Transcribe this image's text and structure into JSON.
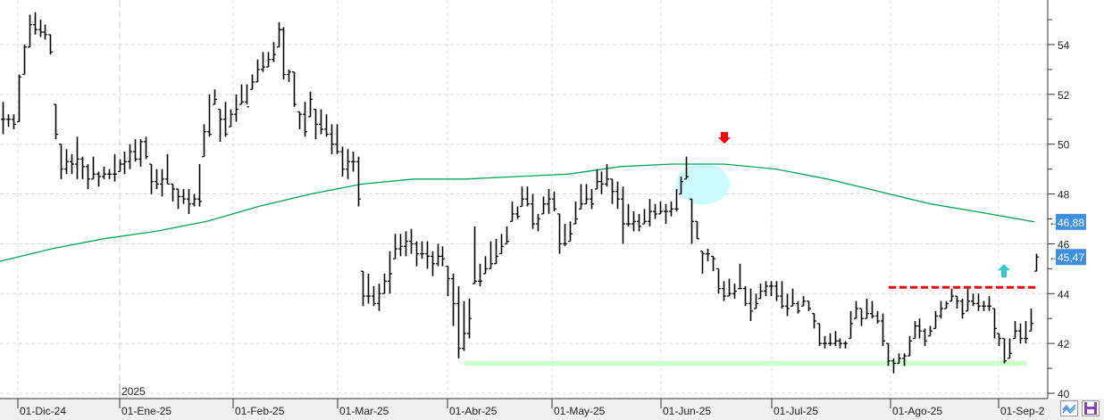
{
  "chart_data": {
    "type": "ohlc",
    "title": "",
    "xlabel": "",
    "ylabel": "",
    "ylim": [
      40,
      55.5
    ],
    "y_ticks": [
      "40",
      "42",
      "44",
      "46",
      "48",
      "50",
      "52",
      "54"
    ],
    "x_ticks": [
      "01-Dic-24",
      "01-Ene-25",
      "01-Feb-25",
      "01-Mar-25",
      "01-Abr-25",
      "01-May-25",
      "01-Jun-25",
      "01-Jul-25",
      "01-Ago-25",
      "01-Sep-2"
    ],
    "year_marker": "2025",
    "grid": true,
    "bar_fields": [
      "high",
      "low",
      "close"
    ],
    "bars": [
      [
        51.7,
        50.4,
        51.0
      ],
      [
        51.2,
        50.7,
        51.0
      ],
      [
        51.2,
        50.6,
        50.8
      ],
      [
        52.8,
        50.9,
        52.7
      ],
      [
        54.0,
        52.8,
        53.9
      ],
      [
        55.2,
        53.9,
        54.8
      ],
      [
        55.3,
        54.4,
        54.6
      ],
      [
        55.0,
        54.3,
        54.5
      ],
      [
        54.8,
        54.2,
        54.4
      ],
      [
        54.4,
        53.6,
        53.7
      ],
      [
        51.6,
        50.2,
        50.4
      ],
      [
        50.0,
        48.6,
        49.0
      ],
      [
        49.8,
        48.8,
        49.3
      ],
      [
        49.6,
        48.8,
        49.2
      ],
      [
        50.3,
        48.6,
        49.4
      ],
      [
        49.5,
        48.6,
        49.1
      ],
      [
        49.2,
        48.2,
        48.6
      ],
      [
        49.5,
        48.6,
        48.8
      ],
      [
        48.9,
        48.3,
        48.7
      ],
      [
        49.1,
        48.6,
        48.8
      ],
      [
        49.0,
        48.6,
        48.8
      ],
      [
        49.6,
        48.5,
        48.8
      ],
      [
        49.4,
        48.9,
        49.2
      ],
      [
        49.7,
        48.8,
        49.3
      ],
      [
        50.0,
        49.0,
        49.7
      ],
      [
        50.2,
        49.3,
        49.4
      ],
      [
        50.2,
        49.1,
        50.1
      ],
      [
        50.3,
        49.4,
        49.5
      ],
      [
        49.2,
        48.0,
        48.5
      ],
      [
        49.0,
        48.2,
        48.4
      ],
      [
        49.0,
        47.9,
        48.6
      ],
      [
        49.6,
        48.4,
        48.4
      ],
      [
        48.4,
        47.7,
        48.2
      ],
      [
        48.2,
        47.4,
        47.9
      ],
      [
        48.2,
        47.6,
        47.8
      ],
      [
        48.2,
        47.2,
        47.6
      ],
      [
        48.0,
        47.5,
        47.8
      ],
      [
        49.2,
        47.5,
        47.7
      ],
      [
        50.8,
        49.5,
        50.5
      ],
      [
        52.0,
        50.3,
        50.4
      ],
      [
        52.2,
        51.6,
        51.8
      ],
      [
        51.4,
        50.1,
        51.0
      ],
      [
        51.7,
        50.3,
        50.4
      ],
      [
        51.4,
        50.7,
        51.2
      ],
      [
        52.0,
        50.9,
        51.4
      ],
      [
        52.4,
        51.6,
        51.7
      ],
      [
        52.4,
        51.6,
        51.5
      ],
      [
        52.8,
        52.2,
        52.5
      ],
      [
        53.4,
        52.5,
        53.0
      ],
      [
        53.7,
        52.9,
        53.1
      ],
      [
        53.7,
        53.1,
        53.4
      ],
      [
        54.1,
        53.3,
        53.6
      ],
      [
        54.9,
        53.9,
        54.6
      ],
      [
        54.7,
        52.6,
        52.8
      ],
      [
        53.0,
        52.5,
        52.9
      ],
      [
        52.9,
        51.5,
        51.6
      ],
      [
        51.3,
        50.6,
        51.2
      ],
      [
        51.7,
        50.3,
        50.5
      ],
      [
        52.1,
        51.1,
        51.8
      ],
      [
        51.4,
        50.2,
        50.8
      ],
      [
        51.4,
        50.4,
        50.6
      ],
      [
        51.2,
        50.3,
        50.4
      ],
      [
        50.8,
        49.6,
        50.0
      ],
      [
        50.8,
        49.6,
        49.7
      ],
      [
        49.9,
        48.7,
        49.0
      ],
      [
        49.8,
        48.6,
        49.3
      ],
      [
        49.7,
        48.9,
        49.3
      ],
      [
        49.5,
        47.5,
        47.8
      ],
      [
        44.9,
        43.5,
        43.9
      ],
      [
        44.8,
        43.6,
        43.9
      ],
      [
        44.3,
        43.5,
        43.6
      ],
      [
        44.4,
        43.3,
        44.0
      ],
      [
        44.8,
        44.0,
        44.5
      ],
      [
        45.7,
        44.0,
        44.8
      ],
      [
        46.4,
        45.4,
        45.8
      ],
      [
        46.4,
        45.5,
        45.9
      ],
      [
        46.5,
        45.5,
        46.1
      ],
      [
        46.6,
        45.6,
        46.0
      ],
      [
        46.1,
        45.1,
        45.6
      ],
      [
        46.1,
        45.4,
        45.6
      ],
      [
        46.1,
        45.0,
        45.5
      ],
      [
        45.7,
        44.7,
        45.2
      ],
      [
        46.0,
        45.1,
        45.5
      ],
      [
        45.9,
        45.1,
        45.4
      ],
      [
        45.1,
        43.9,
        44.6
      ],
      [
        44.8,
        42.7,
        43.6
      ],
      [
        44.3,
        41.4,
        41.8
      ],
      [
        43.7,
        41.7,
        42.4
      ],
      [
        43.8,
        42.2,
        43.0
      ],
      [
        46.7,
        44.4,
        44.5
      ],
      [
        45.2,
        44.3,
        44.5
      ],
      [
        45.5,
        44.8,
        45.0
      ],
      [
        46.1,
        45.0,
        45.2
      ],
      [
        46.2,
        45.2,
        45.5
      ],
      [
        46.4,
        45.6,
        45.9
      ],
      [
        46.7,
        46.0,
        46.1
      ],
      [
        47.7,
        46.9,
        47.2
      ],
      [
        47.5,
        47.0,
        47.1
      ],
      [
        48.3,
        47.5,
        47.8
      ],
      [
        48.3,
        47.5,
        47.6
      ],
      [
        48.0,
        46.6,
        46.8
      ],
      [
        47.2,
        46.5,
        47.0
      ],
      [
        47.9,
        47.2,
        47.6
      ],
      [
        48.2,
        47.2,
        47.8
      ],
      [
        48.1,
        47.3,
        47.4
      ],
      [
        47.2,
        45.6,
        46.0
      ],
      [
        46.8,
        45.9,
        46.0
      ],
      [
        46.9,
        46.1,
        46.4
      ],
      [
        47.7,
        46.8,
        47.0
      ],
      [
        48.4,
        47.4,
        47.6
      ],
      [
        48.4,
        47.6,
        47.8
      ],
      [
        48.2,
        47.4,
        47.6
      ],
      [
        49.0,
        48.2,
        48.5
      ],
      [
        48.9,
        48.0,
        48.4
      ],
      [
        49.2,
        48.3,
        48.6
      ],
      [
        48.6,
        47.6,
        48.1
      ],
      [
        48.5,
        47.4,
        47.8
      ],
      [
        48.3,
        46.0,
        46.8
      ],
      [
        47.6,
        46.7,
        46.8
      ],
      [
        47.3,
        46.5,
        46.9
      ],
      [
        47.2,
        46.5,
        46.7
      ],
      [
        47.4,
        46.8,
        46.9
      ],
      [
        47.8,
        46.7,
        47.3
      ],
      [
        47.6,
        47.0,
        47.2
      ],
      [
        47.7,
        47.2,
        47.3
      ],
      [
        47.6,
        46.8,
        47.3
      ],
      [
        47.7,
        47.1,
        47.4
      ],
      [
        48.2,
        47.3,
        47.4
      ],
      [
        48.7,
        48.0,
        48.5
      ],
      [
        49.5,
        48.6,
        48.7
      ],
      [
        47.8,
        46.0,
        46.9
      ],
      [
        46.9,
        46.2,
        46.2
      ],
      [
        45.7,
        44.8,
        45.6
      ],
      [
        45.8,
        45.3,
        45.6
      ],
      [
        45.5,
        44.9,
        45.4
      ],
      [
        45.0,
        44.0,
        44.2
      ],
      [
        44.5,
        43.7,
        43.9
      ],
      [
        44.6,
        43.9,
        44.0
      ],
      [
        44.4,
        43.8,
        44.1
      ],
      [
        45.2,
        44.2,
        44.2
      ],
      [
        44.3,
        43.5,
        43.6
      ],
      [
        44.2,
        42.9,
        43.3
      ],
      [
        44.0,
        43.4,
        43.6
      ],
      [
        44.4,
        43.8,
        44.1
      ],
      [
        44.5,
        43.9,
        44.3
      ],
      [
        44.5,
        43.9,
        44.3
      ],
      [
        44.5,
        43.7,
        43.9
      ],
      [
        44.5,
        43.4,
        43.5
      ],
      [
        44.0,
        43.1,
        43.4
      ],
      [
        44.2,
        43.5,
        43.6
      ],
      [
        43.7,
        43.2,
        43.3
      ],
      [
        43.9,
        43.5,
        43.7
      ],
      [
        43.7,
        43.3,
        43.4
      ],
      [
        43.2,
        42.6,
        42.9
      ],
      [
        42.8,
        41.9,
        42.0
      ],
      [
        42.3,
        41.8,
        42.0
      ],
      [
        42.4,
        41.9,
        42.0
      ],
      [
        42.5,
        41.9,
        42.1
      ],
      [
        42.2,
        41.8,
        42.0
      ],
      [
        42.1,
        41.8,
        42.0
      ],
      [
        43.3,
        42.2,
        42.8
      ],
      [
        43.7,
        43.0,
        43.4
      ],
      [
        43.4,
        42.7,
        43.0
      ],
      [
        43.8,
        43.0,
        43.2
      ],
      [
        43.7,
        43.0,
        43.1
      ],
      [
        43.3,
        42.8,
        42.9
      ],
      [
        43.2,
        41.9,
        42.1
      ],
      [
        42.0,
        41.1,
        41.3
      ],
      [
        41.4,
        40.8,
        41.2
      ],
      [
        41.6,
        41.2,
        41.4
      ],
      [
        41.6,
        41.1,
        41.5
      ],
      [
        42.3,
        41.5,
        42.1
      ],
      [
        42.9,
        42.2,
        42.7
      ],
      [
        43.0,
        42.2,
        42.5
      ],
      [
        42.6,
        41.9,
        42.1
      ],
      [
        42.7,
        42.3,
        42.5
      ],
      [
        43.3,
        42.6,
        43.1
      ],
      [
        43.7,
        43.0,
        43.4
      ],
      [
        43.7,
        43.4,
        43.6
      ],
      [
        44.2,
        43.7,
        43.9
      ],
      [
        43.9,
        43.4,
        43.7
      ],
      [
        43.8,
        43.0,
        43.2
      ],
      [
        44.2,
        43.3,
        43.7
      ],
      [
        44.0,
        43.5,
        43.6
      ],
      [
        44.0,
        43.3,
        43.5
      ],
      [
        43.7,
        43.3,
        43.5
      ],
      [
        43.9,
        43.3,
        43.5
      ],
      [
        43.4,
        42.2,
        42.6
      ],
      [
        42.4,
        41.9,
        42.2
      ],
      [
        42.2,
        41.2,
        41.3
      ],
      [
        42.2,
        41.4,
        41.6
      ],
      [
        42.9,
        42.2,
        42.5
      ],
      [
        42.8,
        42.0,
        42.2
      ],
      [
        42.9,
        42.0,
        42.2
      ],
      [
        43.4,
        42.5,
        42.8
      ],
      [
        45.6,
        44.9,
        45.47
      ]
    ],
    "moving_average": {
      "sample_every_bars": 10,
      "values": [
        45.3,
        45.8,
        46.2,
        46.5,
        46.9,
        47.5,
        48.0,
        48.4,
        48.6,
        48.6,
        48.7,
        48.8,
        49.1,
        49.2,
        49.2,
        49.0,
        48.6,
        48.1,
        47.6,
        47.25,
        46.88
      ],
      "color": "#00a651"
    },
    "last_values": [
      {
        "label": "46,88",
        "value": 46.88
      },
      {
        "label": "45,47",
        "value": 45.47
      }
    ],
    "annotations": {
      "resistance_level": 44.25,
      "support_level": 41.2,
      "top_ellipse_center_price": 48.4,
      "sell_arrow_price": 50.2,
      "buy_arrow_price": 44.9
    },
    "colors": {
      "bars": "#000000",
      "label_bg": "#3d8fe2",
      "resistance": "#ff0000",
      "support": "#ccffcc",
      "ellipse": "#ccfbfd",
      "sell_arrow": "#ff0000",
      "buy_arrow": "#33cccc"
    }
  }
}
